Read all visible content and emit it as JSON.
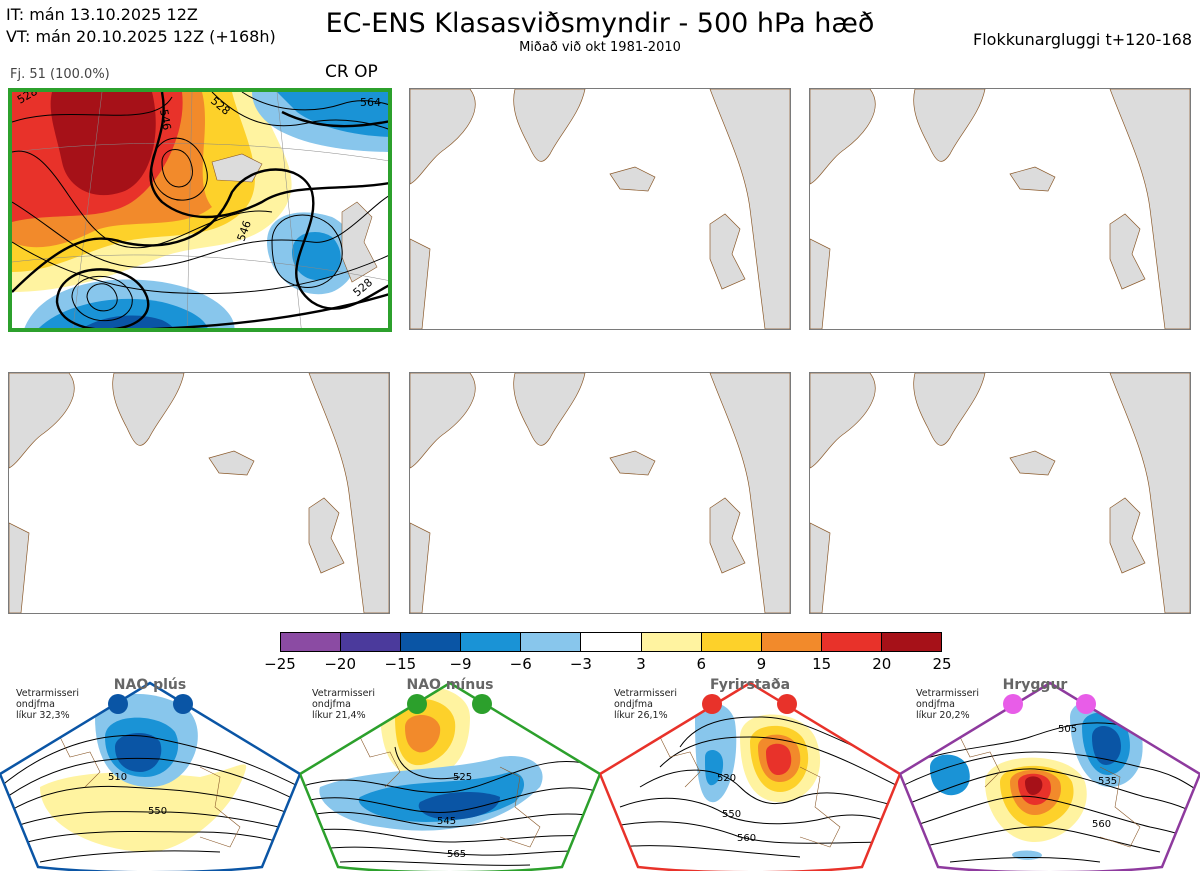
{
  "header": {
    "it_line": "IT: mán 13.10.2025 12Z",
    "vt_line": "VT: mán 20.10.2025 12Z  (+168h)",
    "title": "EC-ENS Klasasviðsmyndir - 500 hPa hæð",
    "subtitle": "Miðað við okt 1981-2010",
    "window": "Flokkunargluggi t+120-168"
  },
  "member_panel": {
    "count_label": "Fj. 51 (100.0%)",
    "crop_label": "CR OP",
    "border_color": "#2ca02c",
    "contour_labels": [
      "528",
      "546",
      "528",
      "564",
      "546",
      "528",
      "564"
    ]
  },
  "chart_data": {
    "type": "heatmap",
    "title": "EC-ENS Klasasviðsmyndir - 500 hPa hæð",
    "colorbar": {
      "ticks": [
        "−25",
        "−20",
        "−15",
        "−9",
        "−6",
        "−3",
        "3",
        "6",
        "9",
        "15",
        "20",
        "25"
      ],
      "colors": [
        "#8b4ba3",
        "#4b3a9c",
        "#0a55a5",
        "#1a93d6",
        "#88c6ec",
        "#ffffff",
        "#fff3a0",
        "#fdd12a",
        "#f28a2b",
        "#e8322a",
        "#a61118"
      ]
    },
    "clusters": [
      {
        "name": "CR OP",
        "count_label": "Fj. 51 (100.0%)",
        "percent": 100.0
      }
    ],
    "regimes": [
      {
        "name": "NAO plús",
        "info": [
          "Vetrarmisseri",
          "ondjfma",
          "líkur 32,3%"
        ],
        "probability": 32.3,
        "color": "#0a55a5",
        "contour_labels": [
          "510",
          "550"
        ]
      },
      {
        "name": "NAO mínus",
        "info": [
          "Vetrarmisseri",
          "ondjfma",
          "líkur 21,4%"
        ],
        "probability": 21.4,
        "color": "#2ca02c",
        "contour_labels": [
          "525",
          "545",
          "565"
        ]
      },
      {
        "name": "Fyrirstaða",
        "info": [
          "Vetrarmisseri",
          "ondjfma",
          "líkur 26,1%"
        ],
        "probability": 26.1,
        "color": "#e8322a",
        "contour_labels": [
          "520",
          "550",
          "560"
        ]
      },
      {
        "name": "Hryggur",
        "info": [
          "Vetrarmisseri",
          "ondjfma",
          "líkur 20,2%"
        ],
        "probability": 20.2,
        "color": "#c050c0",
        "contour_labels": [
          "505",
          "535",
          "560"
        ]
      }
    ]
  }
}
